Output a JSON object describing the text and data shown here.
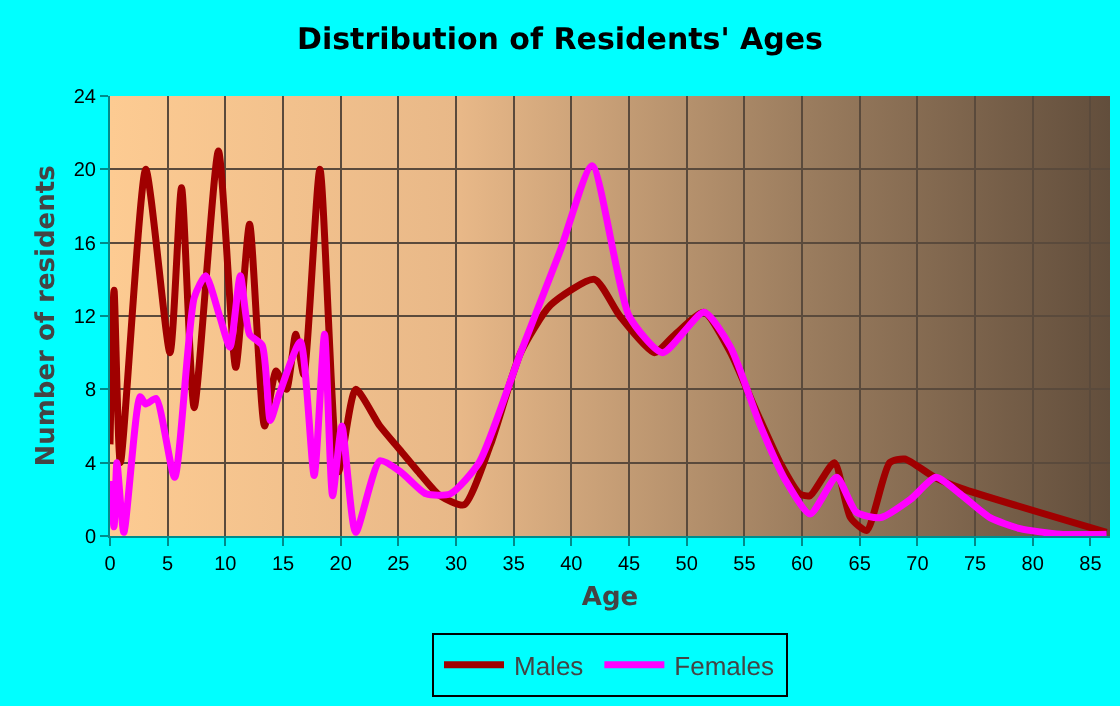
{
  "chart_data": {
    "type": "line",
    "title": "Distribution of Residents' Ages",
    "xlabel": "Age",
    "ylabel": "Number of residents",
    "xlim": [
      0,
      86.7
    ],
    "xticks": [
      0,
      5,
      10,
      15,
      20,
      25,
      30,
      35,
      40,
      45,
      50,
      55,
      60,
      65,
      70,
      75,
      80,
      85
    ],
    "ylim": [
      0,
      24
    ],
    "yticks": [
      0,
      4,
      8,
      12,
      16,
      20,
      24
    ],
    "grid": true,
    "legend": "bottom",
    "marker": "none",
    "line_style": "solid",
    "series": [
      {
        "name": "Males",
        "color": "#a00000",
        "x": [
          0,
          0.35,
          0.9,
          3.1,
          5.2,
          6.2,
          7.3,
          9.4,
          10.9,
          12.1,
          13.4,
          14.4,
          15.3,
          16.1,
          16.8,
          18.2,
          19.8,
          21.3,
          23.4,
          25,
          27,
          28.6,
          30.7,
          33,
          35.6,
          38.2,
          42,
          44.2,
          47.2,
          49,
          51.5,
          53.8,
          55.9,
          58.1,
          59.8,
          60.7,
          62.8,
          64.2,
          65.6,
          67.6,
          68.9,
          71.5,
          73.8,
          86.4
        ],
        "values": [
          5,
          13.4,
          4,
          20,
          10,
          19,
          7,
          21,
          9.2,
          17,
          6,
          9,
          8,
          11,
          8.8,
          20,
          3.5,
          8,
          6,
          4.8,
          3.3,
          2.2,
          1.7,
          5,
          10,
          12.6,
          14,
          12,
          10,
          11,
          12.2,
          10,
          7,
          4,
          2.3,
          2.2,
          4,
          1,
          0.3,
          4,
          4.2,
          3.2,
          2.6,
          0.2
        ]
      },
      {
        "name": "Females",
        "color": "#ff00ff",
        "x": [
          0,
          0.35,
          0.6,
          1.2,
          2.6,
          3.1,
          4,
          5.6,
          7.3,
          8.3,
          9.5,
          10.4,
          11.3,
          12.1,
          13.2,
          13.9,
          14.6,
          16.5,
          17.7,
          18.6,
          19.3,
          20.1,
          21.3,
          23.4,
          25.2,
          27.4,
          29.5,
          32,
          35.6,
          39,
          41.8,
          45,
          47.9,
          51.5,
          53.8,
          56.4,
          58.6,
          60.7,
          63,
          64.7,
          66.8,
          69.4,
          71.6,
          73.7,
          76.3,
          78.9,
          82.4,
          86.4
        ],
        "values": [
          3,
          0.5,
          4,
          0.2,
          7.6,
          7.2,
          7.5,
          3.2,
          13,
          14.2,
          12,
          10.3,
          14.2,
          11,
          10.4,
          6.3,
          7.6,
          10.6,
          3.3,
          11,
          2.2,
          6,
          0.2,
          4.1,
          3.5,
          2.3,
          2.3,
          4,
          10,
          15.5,
          20.2,
          12,
          10,
          12.2,
          10.3,
          6,
          3,
          1.2,
          3.2,
          1.3,
          1,
          2,
          3.2,
          2.3,
          1,
          0.4,
          0.1,
          0.1
        ]
      }
    ]
  }
}
